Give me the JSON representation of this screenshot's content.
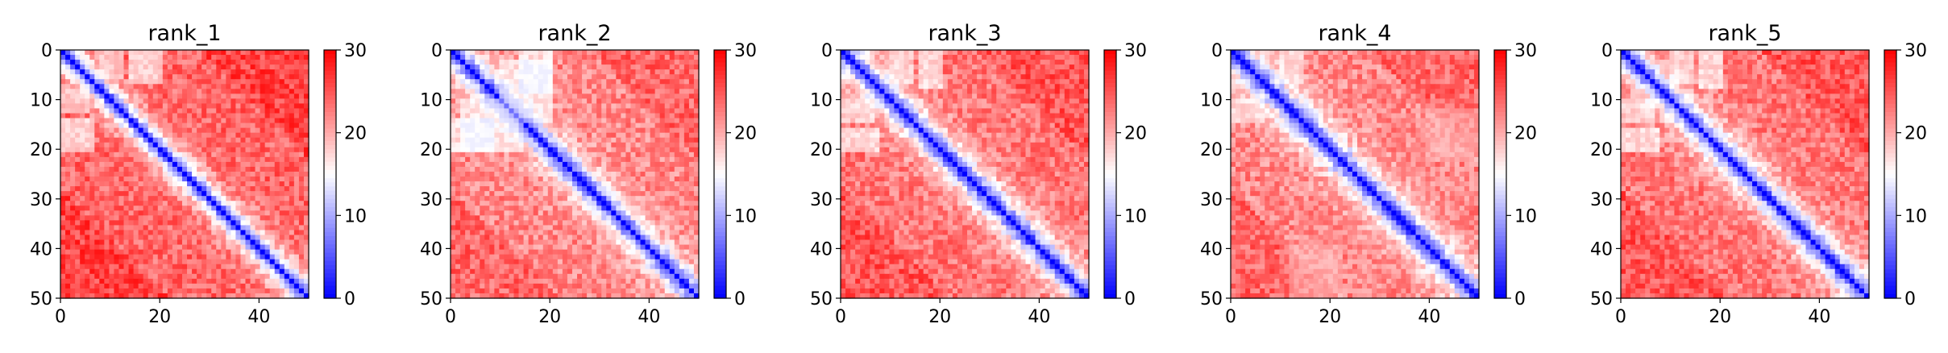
{
  "chart_data": [
    {
      "type": "heatmap",
      "title": "rank_1",
      "rows": 51,
      "cols": 51,
      "xlim": [
        0,
        50
      ],
      "ylim": [
        50,
        0
      ],
      "x_ticks": [
        0,
        20,
        40
      ],
      "y_ticks": [
        0,
        10,
        20,
        30,
        40,
        50
      ],
      "colorbar": {
        "min": 0,
        "max": 30,
        "ticks": [
          0,
          10,
          20,
          30
        ],
        "colormap": "bwr",
        "colors": [
          "#0000ff",
          "#ffffff",
          "#ff0000"
        ]
      },
      "diag_width": 0.36,
      "plateau": 24,
      "seed": 11,
      "blocks": [
        {
          "rows": [
            8,
            12
          ],
          "cols": [
            0,
            5
          ],
          "value": 15
        },
        {
          "rows": [
            0,
            6
          ],
          "cols": [
            14,
            20
          ],
          "value": 12
        }
      ]
    },
    {
      "type": "heatmap",
      "title": "rank_2",
      "rows": 51,
      "cols": 51,
      "xlim": [
        0,
        50
      ],
      "ylim": [
        50,
        0
      ],
      "x_ticks": [
        0,
        20,
        40
      ],
      "y_ticks": [
        0,
        10,
        20,
        30,
        40,
        50
      ],
      "colorbar": {
        "min": 0,
        "max": 30,
        "ticks": [
          0,
          10,
          20,
          30
        ],
        "colormap": "bwr",
        "colors": [
          "#0000ff",
          "#ffffff",
          "#ff0000"
        ]
      },
      "diag_width": 0.33,
      "plateau": 22,
      "seed": 23,
      "blocks": [
        {
          "rows": [
            10,
            20
          ],
          "cols": [
            2,
            14
          ],
          "value": 13
        },
        {
          "rows": [
            0,
            8
          ],
          "cols": [
            14,
            20
          ],
          "value": 12
        }
      ]
    },
    {
      "type": "heatmap",
      "title": "rank_3",
      "rows": 51,
      "cols": 51,
      "xlim": [
        0,
        50
      ],
      "ylim": [
        50,
        0
      ],
      "x_ticks": [
        0,
        20,
        40
      ],
      "y_ticks": [
        0,
        10,
        20,
        30,
        40,
        50
      ],
      "colorbar": {
        "min": 0,
        "max": 30,
        "ticks": [
          0,
          10,
          20,
          30
        ],
        "colormap": "bwr",
        "colors": [
          "#0000ff",
          "#ffffff",
          "#ff0000"
        ]
      },
      "diag_width": 0.3,
      "plateau": 23,
      "seed": 37,
      "blocks": [
        {
          "rows": [
            10,
            14
          ],
          "cols": [
            0,
            6
          ],
          "value": 14
        },
        {
          "rows": [
            0,
            7
          ],
          "cols": [
            16,
            20
          ],
          "value": 12
        }
      ]
    },
    {
      "type": "heatmap",
      "title": "rank_4",
      "rows": 51,
      "cols": 51,
      "xlim": [
        0,
        50
      ],
      "ylim": [
        50,
        0
      ],
      "x_ticks": [
        0,
        20,
        40
      ],
      "y_ticks": [
        0,
        10,
        20,
        30,
        40,
        50
      ],
      "colorbar": {
        "min": 0,
        "max": 30,
        "ticks": [
          0,
          10,
          20,
          30
        ],
        "colormap": "bwr",
        "colors": [
          "#0000ff",
          "#ffffff",
          "#ff0000"
        ]
      },
      "diag_width": 0.3,
      "plateau": 22,
      "seed": 53,
      "blocks": [
        {
          "rows": [
            10,
            14
          ],
          "cols": [
            0,
            6
          ],
          "value": 14
        },
        {
          "rows": [
            40,
            50
          ],
          "cols": [
            12,
            22
          ],
          "value": 18
        }
      ]
    },
    {
      "type": "heatmap",
      "title": "rank_5",
      "rows": 51,
      "cols": 51,
      "xlim": [
        0,
        50
      ],
      "ylim": [
        50,
        0
      ],
      "x_ticks": [
        0,
        20,
        40
      ],
      "y_ticks": [
        0,
        10,
        20,
        30,
        40,
        50
      ],
      "colorbar": {
        "min": 0,
        "max": 30,
        "ticks": [
          0,
          10,
          20,
          30
        ],
        "colormap": "bwr",
        "colors": [
          "#0000ff",
          "#ffffff",
          "#ff0000"
        ]
      },
      "diag_width": 0.3,
      "plateau": 23,
      "seed": 71,
      "blocks": [
        {
          "rows": [
            10,
            14
          ],
          "cols": [
            0,
            6
          ],
          "value": 14
        },
        {
          "rows": [
            0,
            7
          ],
          "cols": [
            16,
            20
          ],
          "value": 12
        }
      ]
    }
  ]
}
